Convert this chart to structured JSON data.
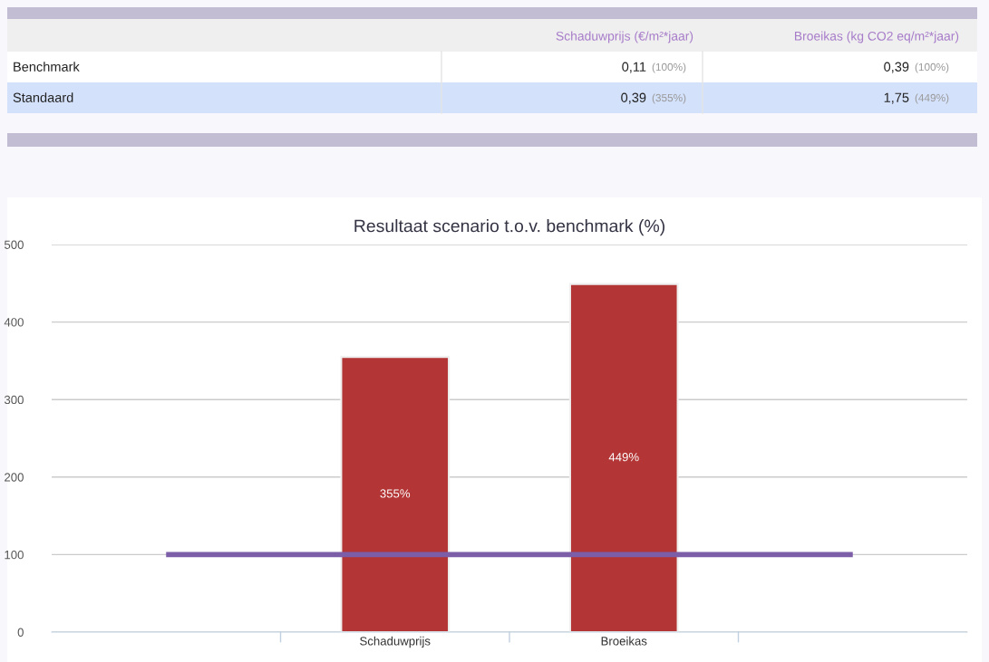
{
  "chart_data": [
    {
      "type": "other",
      "annotations": [
        "Schaduwprijs (€/m²*jaar)",
        "Broeikas (kg CO2 eq/m²*jaar)",
        "Benchmark",
        "0,11",
        "(100%)",
        "0,39",
        "(100%)",
        "Standaard",
        "0,39",
        "(355%)",
        "1,75",
        "(449%)"
      ]
    },
    {
      "type": "bar",
      "title": "Resultaat scenario t.o.v. benchmark (%)",
      "categories": [
        null,
        "Schaduwprijs",
        "Broeikas",
        null
      ],
      "series": [
        {
          "type": "bar",
          "color": "#b33535",
          "values": [
            null,
            355,
            449,
            null
          ],
          "value_labels": [
            null,
            "355%",
            "449%",
            null
          ]
        },
        {
          "type": "line",
          "color": "#7b5ea7",
          "values": [
            100,
            100,
            100,
            100
          ]
        }
      ],
      "ylim": [
        0,
        500
      ],
      "yticks": [
        0,
        100,
        200,
        300,
        400,
        500
      ],
      "grid": "y"
    }
  ]
}
